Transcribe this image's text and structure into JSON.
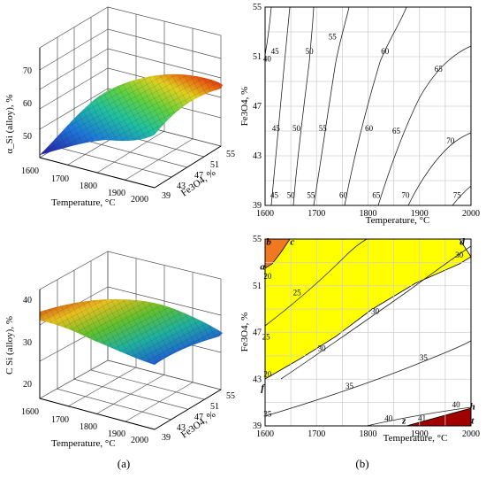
{
  "panel_labels": {
    "a": "(a)",
    "b": "(b)"
  },
  "colors": {
    "yellow": "#ffff00",
    "orange": "#f07820",
    "darkred": "#a00000"
  },
  "chart_data": [
    {
      "id": "a-top",
      "type": "surface3d",
      "zlabel": "α_Si (alloy), %",
      "xlabel": "Temperature, °C",
      "ylabel": "Fe3O4, %",
      "x_ticks": [
        "1600",
        "1700",
        "1800",
        "1900",
        "2000"
      ],
      "y_ticks": [
        "39",
        "43",
        "47",
        "51",
        "55"
      ],
      "z_ticks": [
        "50",
        "60",
        "70"
      ],
      "x_range": [
        1600,
        2000
      ],
      "y_range": [
        39,
        55
      ],
      "z_range": [
        40,
        72
      ]
    },
    {
      "id": "a-bottom",
      "type": "surface3d",
      "zlabel": "C Si (alloy), %",
      "xlabel": "Temperature, °C",
      "ylabel": "Fe3O4, %",
      "x_ticks": [
        "1600",
        "1700",
        "1800",
        "1900",
        "2000"
      ],
      "y_ticks": [
        "39",
        "43",
        "47",
        "51",
        "55"
      ],
      "z_ticks": [
        "20",
        "30",
        "40"
      ],
      "x_range": [
        1600,
        2000
      ],
      "y_range": [
        39,
        55
      ],
      "z_range": [
        20,
        42
      ]
    },
    {
      "id": "b-top",
      "type": "contour",
      "xlabel": "Temperature, °C",
      "ylabel": "Fe3O4, %",
      "x_ticks": [
        1600,
        1700,
        1800,
        1900,
        2000
      ],
      "y_ticks": [
        39,
        43,
        47,
        51,
        55
      ],
      "xlim": [
        1600,
        2000
      ],
      "ylim": [
        39,
        55
      ],
      "grid": true,
      "contour_labels": [
        {
          "text": "40",
          "x": 1604,
          "y": 50.6
        },
        {
          "text": "45",
          "x": 1619,
          "y": 51.2
        },
        {
          "text": "45",
          "x": 1621,
          "y": 45.0
        },
        {
          "text": "45",
          "x": 1618,
          "y": 39.6
        },
        {
          "text": "50",
          "x": 1686,
          "y": 51.2
        },
        {
          "text": "50",
          "x": 1661,
          "y": 45.0
        },
        {
          "text": "50",
          "x": 1650,
          "y": 39.6
        },
        {
          "text": "55",
          "x": 1731,
          "y": 52.4
        },
        {
          "text": "55",
          "x": 1712,
          "y": 45.0
        },
        {
          "text": "55",
          "x": 1689,
          "y": 39.6
        },
        {
          "text": "60",
          "x": 1833,
          "y": 51.2
        },
        {
          "text": "60",
          "x": 1802,
          "y": 45.0
        },
        {
          "text": "60",
          "x": 1752,
          "y": 39.6
        },
        {
          "text": "65",
          "x": 1937,
          "y": 49.8
        },
        {
          "text": "65",
          "x": 1855,
          "y": 44.8
        },
        {
          "text": "65",
          "x": 1816,
          "y": 39.6
        },
        {
          "text": "70",
          "x": 1960,
          "y": 44.0
        },
        {
          "text": "70",
          "x": 1873,
          "y": 39.6
        },
        {
          "text": "75",
          "x": 1973,
          "y": 39.6
        }
      ]
    },
    {
      "id": "b-bottom",
      "type": "contour",
      "xlabel": "Temperature, °C",
      "ylabel": "Fe3O4, %",
      "x_ticks": [
        1600,
        1700,
        1800,
        1900,
        2000
      ],
      "y_ticks": [
        39,
        43,
        47,
        51,
        55
      ],
      "xlim": [
        1600,
        2000
      ],
      "ylim": [
        39,
        55
      ],
      "grid": true,
      "contour_labels": [
        {
          "text": "30",
          "x": 1977,
          "y": 53.4
        },
        {
          "text": "25",
          "x": 1662,
          "y": 50.2
        },
        {
          "text": "30",
          "x": 1814,
          "y": 48.6
        },
        {
          "text": "30",
          "x": 1710,
          "y": 45.4
        },
        {
          "text": "25",
          "x": 1602,
          "y": 46.4
        },
        {
          "text": "20",
          "x": 1605,
          "y": 51.6
        },
        {
          "text": "20",
          "x": 1605,
          "y": 43.2
        },
        {
          "text": "35",
          "x": 1908,
          "y": 44.6
        },
        {
          "text": "35",
          "x": 1764,
          "y": 42.2
        },
        {
          "text": "35",
          "x": 1605,
          "y": 39.8
        },
        {
          "text": "40",
          "x": 1971,
          "y": 40.6
        },
        {
          "text": "40",
          "x": 1840,
          "y": 39.4
        },
        {
          "text": "41",
          "x": 1905,
          "y": 39.4
        }
      ],
      "region_labels": [
        {
          "text": "b",
          "x": 1607,
          "y": 54.5
        },
        {
          "text": "c",
          "x": 1653,
          "y": 54.5
        },
        {
          "text": "d",
          "x": 1983,
          "y": 54.5
        },
        {
          "text": "a",
          "x": 1595,
          "y": 52.4
        },
        {
          "text": "f",
          "x": 1595,
          "y": 42.0
        },
        {
          "text": "z",
          "x": 1870,
          "y": 39.2
        },
        {
          "text": "h",
          "x": 2003,
          "y": 40.4
        },
        {
          "text": "t",
          "x": 2003,
          "y": 39.2
        }
      ]
    }
  ]
}
